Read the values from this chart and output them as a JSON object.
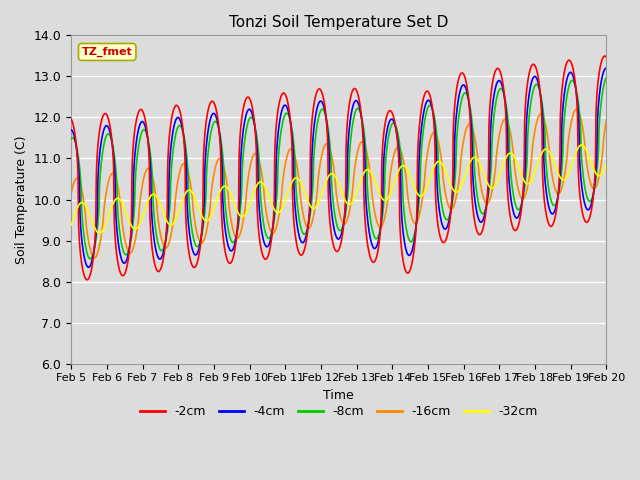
{
  "title": "Tonzi Soil Temperature Set D",
  "xlabel": "Time",
  "ylabel": "Soil Temperature (C)",
  "ylim": [
    6.0,
    14.0
  ],
  "yticks": [
    6.0,
    7.0,
    8.0,
    9.0,
    10.0,
    11.0,
    12.0,
    13.0,
    14.0
  ],
  "xtick_labels": [
    "Feb 5",
    "Feb 6",
    "Feb 7",
    "Feb 8",
    "Feb 9",
    "Feb 10",
    "Feb 11",
    "Feb 12",
    "Feb 13",
    "Feb 14",
    "Feb 15",
    "Feb 16",
    "Feb 17",
    "Feb 18",
    "Feb 19",
    "Feb 20"
  ],
  "legend_label": "TZ_fmet",
  "series_labels": [
    "-2cm",
    "-4cm",
    "-8cm",
    "-16cm",
    "-32cm"
  ],
  "series_colors": [
    "#ff0000",
    "#0000ff",
    "#00cc00",
    "#ff8800",
    "#ffff00"
  ],
  "background_color": "#dcdcdc",
  "plot_bg_color": "#dcdcdc",
  "figsize": [
    6.4,
    4.8
  ],
  "dpi": 100
}
